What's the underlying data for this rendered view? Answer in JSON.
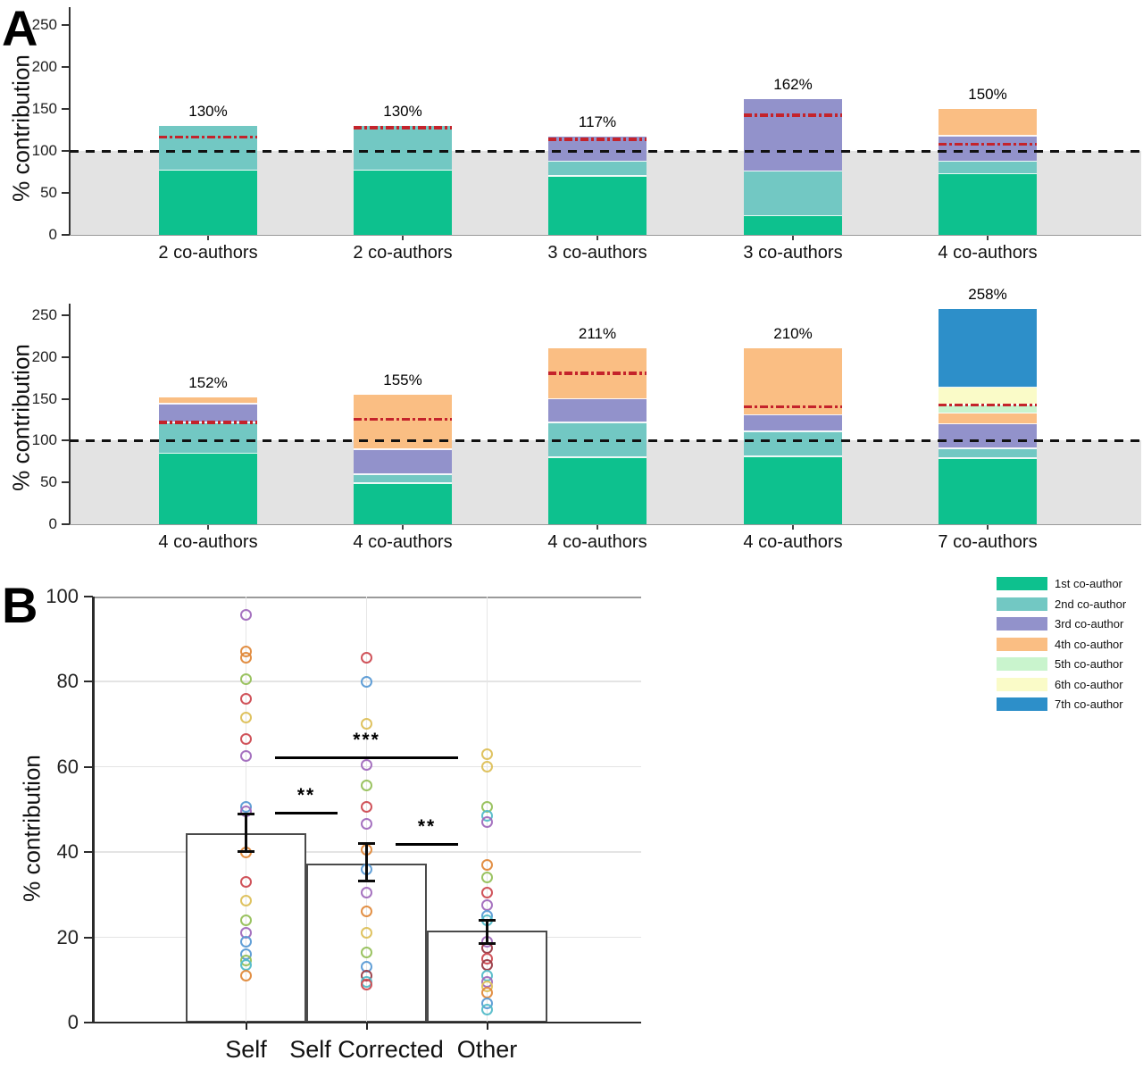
{
  "figure": {
    "panel_a_letter": "A",
    "panel_b_letter": "B",
    "ylabel": "% contribution"
  },
  "colors": {
    "red_dashdot_line": "#c4232b",
    "reference_dashed_line": "#111111",
    "shaded_region": "#e3e3e3",
    "bar_fill_panel_b": "#ffffff",
    "bar_border_panel_b": "#4a4a4a"
  },
  "scatter_palette": {
    "purple": "#a16bbd",
    "orange": "#e08a3c",
    "green": "#96c05a",
    "red": "#cd4b52",
    "yellow": "#ddc05a",
    "blue": "#5b9bd5",
    "teal": "#54bcc9",
    "darkred": "#9a3c47"
  },
  "legend": {
    "items": [
      {
        "label": "1st co-author",
        "color": "#0dc18e"
      },
      {
        "label": "2nd co-author",
        "color": "#72c8c3"
      },
      {
        "label": "3rd co-author",
        "color": "#9292cb"
      },
      {
        "label": "4th co-author",
        "color": "#fabe83"
      },
      {
        "label": "5th co-author",
        "color": "#c9f4cd"
      },
      {
        "label": "6th co-author",
        "color": "#fafbc8"
      },
      {
        "label": "7th co-author",
        "color": "#2d8fc9"
      }
    ]
  },
  "chart_data": [
    {
      "id": "panel_a_row1",
      "type": "bar",
      "stacked": true,
      "ylabel": "% contribution",
      "ylim": [
        0,
        270
      ],
      "yticks": [
        0,
        50,
        100,
        150,
        200,
        250
      ],
      "grid": false,
      "reference_line": 100,
      "shaded_band": [
        0,
        100
      ],
      "categories": [
        "2 co-authors",
        "2 co-authors",
        "3 co-authors",
        "3 co-authors",
        "4 co-authors"
      ],
      "bar_total_labels": [
        "130%",
        "130%",
        "117%",
        "162%",
        "150%"
      ],
      "bar_totals": [
        130,
        130,
        117,
        162,
        150
      ],
      "red_dashdot_values": [
        117,
        128,
        114,
        143,
        108
      ],
      "series": [
        {
          "name": "1st co-author",
          "color": "#0dc18e",
          "values": [
            77,
            77,
            70,
            23,
            73
          ]
        },
        {
          "name": "2nd co-author",
          "color": "#72c8c3",
          "values": [
            53,
            53,
            18,
            53,
            15
          ]
        },
        {
          "name": "3rd co-author",
          "color": "#9292cb",
          "values": [
            0,
            0,
            29,
            86,
            30
          ]
        },
        {
          "name": "4th co-author",
          "color": "#fabe83",
          "values": [
            0,
            0,
            0,
            0,
            32
          ]
        },
        {
          "name": "5th co-author",
          "color": "#c9f4cd",
          "values": [
            0,
            0,
            0,
            0,
            0
          ]
        },
        {
          "name": "6th co-author",
          "color": "#fafbc8",
          "values": [
            0,
            0,
            0,
            0,
            0
          ]
        },
        {
          "name": "7th co-author",
          "color": "#2d8fc9",
          "values": [
            0,
            0,
            0,
            0,
            0
          ]
        }
      ]
    },
    {
      "id": "panel_a_row2",
      "type": "bar",
      "stacked": true,
      "ylabel": "% contribution",
      "ylim": [
        0,
        264
      ],
      "yticks": [
        0,
        50,
        100,
        150,
        200,
        250
      ],
      "grid": false,
      "reference_line": 100,
      "shaded_band": [
        0,
        100
      ],
      "categories": [
        "4 co-authors",
        "4 co-authors",
        "4 co-authors",
        "4 co-authors",
        "7 co-authors"
      ],
      "bar_total_labels": [
        "152%",
        "155%",
        "211%",
        "210%",
        "258%"
      ],
      "bar_totals": [
        152,
        155,
        211,
        210,
        258
      ],
      "red_dashdot_values": [
        122,
        126,
        181,
        141,
        143
      ],
      "series": [
        {
          "name": "1st co-author",
          "color": "#0dc18e",
          "values": [
            85,
            49,
            80,
            81,
            79
          ]
        },
        {
          "name": "2nd co-author",
          "color": "#72c8c3",
          "values": [
            37,
            11,
            42,
            30,
            12
          ]
        },
        {
          "name": "3rd co-author",
          "color": "#9292cb",
          "values": [
            22,
            30,
            28,
            20,
            29
          ]
        },
        {
          "name": "4th co-author",
          "color": "#fabe83",
          "values": [
            8,
            65,
            61,
            79,
            13
          ]
        },
        {
          "name": "5th co-author",
          "color": "#c9f4cd",
          "values": [
            0,
            0,
            0,
            0,
            10
          ]
        },
        {
          "name": "6th co-author",
          "color": "#fafbc8",
          "values": [
            0,
            0,
            0,
            0,
            21
          ]
        },
        {
          "name": "7th co-author",
          "color": "#2d8fc9",
          "values": [
            0,
            0,
            0,
            0,
            94
          ]
        }
      ]
    },
    {
      "id": "panel_b",
      "type": "bar",
      "subtype": "means-with-error-and-scatter",
      "ylabel": "% contribution",
      "ylim": [
        0,
        100
      ],
      "yticks": [
        0,
        20,
        40,
        60,
        80,
        100
      ],
      "grid": true,
      "categories": [
        "Self",
        "Self Corrected",
        "Other"
      ],
      "bar_means": [
        44.5,
        37.3,
        21.5
      ],
      "error_bars": [
        {
          "low": 40,
          "high": 49
        },
        {
          "low": 33,
          "high": 42
        },
        {
          "low": 18.5,
          "high": 24
        }
      ],
      "significance": [
        {
          "stars": "**",
          "from": 0,
          "to": 1,
          "line_y": 49.5
        },
        {
          "stars": "***",
          "from": 0,
          "to": 2,
          "line_y": 62.5
        },
        {
          "stars": "**",
          "from": 1,
          "to": 2,
          "line_y": 42
        }
      ],
      "points": [
        [
          {
            "v": 95.5,
            "c": "purple"
          },
          {
            "v": 87,
            "c": "orange"
          },
          {
            "v": 85.5,
            "c": "orange"
          },
          {
            "v": 80.5,
            "c": "green"
          },
          {
            "v": 76,
            "c": "red"
          },
          {
            "v": 71.5,
            "c": "yellow"
          },
          {
            "v": 66.5,
            "c": "red"
          },
          {
            "v": 62.5,
            "c": "purple"
          },
          {
            "v": 50.5,
            "c": "blue"
          },
          {
            "v": 49.5,
            "c": "purple"
          },
          {
            "v": 40,
            "c": "orange"
          },
          {
            "v": 33,
            "c": "red"
          },
          {
            "v": 28.5,
            "c": "yellow"
          },
          {
            "v": 24,
            "c": "green"
          },
          {
            "v": 21,
            "c": "purple"
          },
          {
            "v": 19,
            "c": "blue"
          },
          {
            "v": 16,
            "c": "blue"
          },
          {
            "v": 14.5,
            "c": "green"
          },
          {
            "v": 13.5,
            "c": "teal"
          },
          {
            "v": 11,
            "c": "orange"
          }
        ],
        [
          {
            "v": 85.5,
            "c": "red"
          },
          {
            "v": 80,
            "c": "blue"
          },
          {
            "v": 70,
            "c": "yellow"
          },
          {
            "v": 60.5,
            "c": "purple"
          },
          {
            "v": 55.5,
            "c": "green"
          },
          {
            "v": 50.5,
            "c": "red"
          },
          {
            "v": 46.5,
            "c": "purple"
          },
          {
            "v": 40.5,
            "c": "orange"
          },
          {
            "v": 36,
            "c": "blue"
          },
          {
            "v": 30.5,
            "c": "purple"
          },
          {
            "v": 26,
            "c": "orange"
          },
          {
            "v": 21,
            "c": "yellow"
          },
          {
            "v": 16.5,
            "c": "green"
          },
          {
            "v": 13,
            "c": "blue"
          },
          {
            "v": 11,
            "c": "darkred"
          },
          {
            "v": 9.5,
            "c": "teal"
          },
          {
            "v": 9,
            "c": "red"
          }
        ],
        [
          {
            "v": 63,
            "c": "yellow"
          },
          {
            "v": 60,
            "c": "yellow"
          },
          {
            "v": 50.5,
            "c": "green"
          },
          {
            "v": 48.5,
            "c": "teal"
          },
          {
            "v": 47,
            "c": "purple"
          },
          {
            "v": 37,
            "c": "orange"
          },
          {
            "v": 34,
            "c": "green"
          },
          {
            "v": 30.5,
            "c": "red"
          },
          {
            "v": 27.5,
            "c": "purple"
          },
          {
            "v": 25,
            "c": "blue"
          },
          {
            "v": 24,
            "c": "teal"
          },
          {
            "v": 19,
            "c": "purple"
          },
          {
            "v": 17.5,
            "c": "darkred"
          },
          {
            "v": 15,
            "c": "red"
          },
          {
            "v": 13.5,
            "c": "darkred"
          },
          {
            "v": 11,
            "c": "teal"
          },
          {
            "v": 9.5,
            "c": "purple"
          },
          {
            "v": 8.5,
            "c": "yellow"
          },
          {
            "v": 7,
            "c": "orange"
          },
          {
            "v": 4.5,
            "c": "blue"
          },
          {
            "v": 3,
            "c": "teal"
          }
        ]
      ]
    }
  ]
}
